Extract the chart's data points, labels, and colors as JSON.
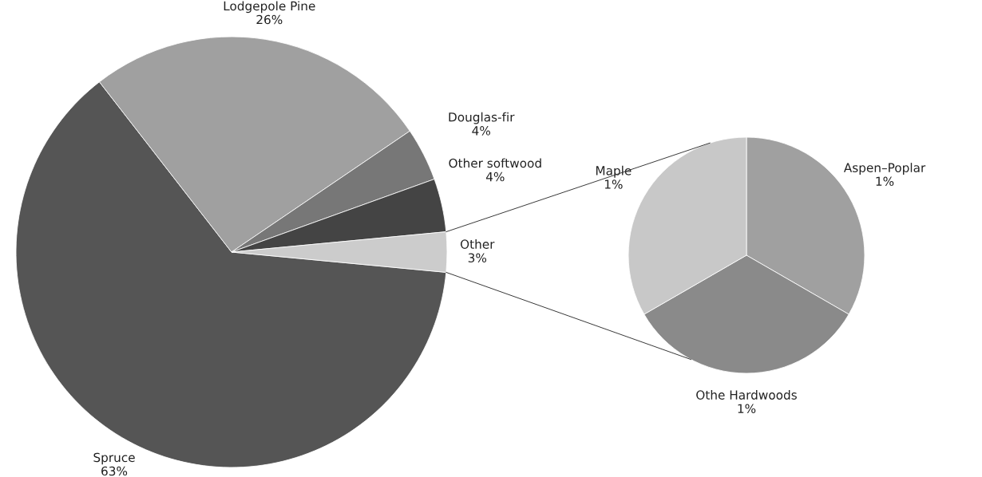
{
  "chart_data": [
    {
      "type": "pie",
      "categories": [
        "Spruce",
        "Lodgepole Pine",
        "Douglas-fir",
        "Other softwood",
        "Other"
      ],
      "values": [
        63,
        26,
        4,
        4,
        3
      ],
      "colors": [
        "#555555",
        "#a0a0a0",
        "#777777",
        "#444444",
        "#cccccc"
      ],
      "value_labels": [
        "63%",
        "26%",
        "4%",
        "4%",
        "3%"
      ]
    },
    {
      "type": "pie",
      "categories": [
        "Aspen–Poplar",
        "Othe Hardwoods",
        "Maple"
      ],
      "values": [
        1,
        1,
        1
      ],
      "colors": [
        "#a0a0a0",
        "#8a8a8a",
        "#c8c8c8"
      ],
      "value_labels": [
        "1%",
        "1%",
        "1%"
      ]
    }
  ]
}
